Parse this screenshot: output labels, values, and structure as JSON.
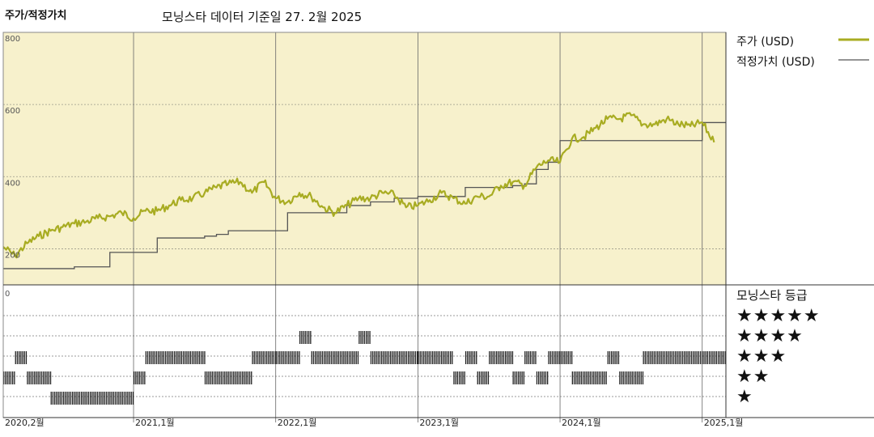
{
  "header": {
    "title": "주가/적정가치",
    "subtitle": "모닝스타 데이터 기준일 27. 2월 2025"
  },
  "legend": {
    "price_label": "주가 (USD)",
    "fair_value_label": "적정가치 (USD)",
    "rating_title": "모닝스타 등급",
    "star_rows": [
      "★★★★★",
      "★★★★",
      "★★★",
      "★★",
      "★"
    ]
  },
  "colors": {
    "panel_bg": "#f7f1cc",
    "price_line": "#a8ac22",
    "fair_value_line": "#555555",
    "rating_marks": "#222222"
  },
  "chart_data": [
    {
      "type": "line",
      "series": [
        {
          "name": "주가 (USD)",
          "x": [
            "2020-02",
            "2020-03",
            "2020-04",
            "2020-05",
            "2020-06",
            "2020-07",
            "2020-08",
            "2020-09",
            "2020-10",
            "2020-11",
            "2020-12",
            "2021-01",
            "2021-02",
            "2021-03",
            "2021-04",
            "2021-05",
            "2021-06",
            "2021-07",
            "2021-08",
            "2021-09",
            "2021-10",
            "2021-11",
            "2021-12",
            "2022-01",
            "2022-02",
            "2022-03",
            "2022-04",
            "2022-05",
            "2022-06",
            "2022-07",
            "2022-08",
            "2022-09",
            "2022-10",
            "2022-11",
            "2022-12",
            "2023-01",
            "2023-02",
            "2023-03",
            "2023-04",
            "2023-05",
            "2023-06",
            "2023-07",
            "2023-08",
            "2023-09",
            "2023-10",
            "2023-11",
            "2023-12",
            "2024-01",
            "2024-02",
            "2024-03",
            "2024-04",
            "2024-05",
            "2024-06",
            "2024-07",
            "2024-08",
            "2024-09",
            "2024-10",
            "2024-11",
            "2024-12",
            "2025-01",
            "2025-02"
          ],
          "values": [
            205,
            180,
            215,
            235,
            250,
            260,
            270,
            275,
            285,
            290,
            300,
            285,
            305,
            305,
            320,
            335,
            340,
            355,
            370,
            380,
            385,
            355,
            385,
            340,
            330,
            355,
            345,
            315,
            300,
            320,
            340,
            340,
            355,
            350,
            315,
            320,
            335,
            355,
            340,
            325,
            345,
            345,
            375,
            385,
            375,
            425,
            445,
            440,
            505,
            510,
            535,
            560,
            560,
            570,
            545,
            545,
            560,
            545,
            540,
            550,
            495
          ]
        },
        {
          "name": "적정가치 (USD)",
          "x": [
            "2020-02",
            "2020-07",
            "2020-08",
            "2020-10",
            "2020-11",
            "2021-03",
            "2021-07",
            "2021-08",
            "2021-09",
            "2021-12",
            "2022-02",
            "2022-03",
            "2022-05",
            "2022-07",
            "2022-09",
            "2022-10",
            "2022-11",
            "2023-01",
            "2023-02",
            "2023-05",
            "2023-07",
            "2023-09",
            "2023-10",
            "2023-11",
            "2023-12",
            "2024-01",
            "2024-03",
            "2024-08",
            "2024-09",
            "2025-01",
            "2025-02"
          ],
          "values": [
            145,
            145,
            150,
            150,
            190,
            230,
            235,
            240,
            250,
            250,
            300,
            300,
            300,
            320,
            330,
            330,
            340,
            345,
            345,
            370,
            370,
            375,
            380,
            420,
            440,
            500,
            500,
            500,
            500,
            550,
            550
          ]
        }
      ],
      "ylim": [
        100,
        800
      ],
      "yticks": [
        200,
        400,
        600,
        800
      ],
      "xlim": [
        "2020-02",
        "2025-03"
      ],
      "xticks": [
        "2020,2월",
        "2021,1월",
        "2022,1월",
        "2023,1월",
        "2024,1월",
        "2025,1월"
      ],
      "grid": true,
      "legend_position": "right"
    },
    {
      "type": "timeline",
      "categories": [
        "★★★★★",
        "★★★★",
        "★★★",
        "★★",
        "★"
      ],
      "ytick": "0",
      "ratings": [
        {
          "start": "2020-02",
          "end": "2020-03",
          "stars": 2
        },
        {
          "start": "2020-03",
          "end": "2020-04",
          "stars": 3
        },
        {
          "start": "2020-04",
          "end": "2020-06",
          "stars": 2
        },
        {
          "start": "2020-06",
          "end": "2021-01",
          "stars": 1
        },
        {
          "start": "2021-01",
          "end": "2021-02",
          "stars": 2
        },
        {
          "start": "2021-02",
          "end": "2021-07",
          "stars": 3
        },
        {
          "start": "2021-07",
          "end": "2021-11",
          "stars": 2
        },
        {
          "start": "2021-11",
          "end": "2022-01",
          "stars": 3
        },
        {
          "start": "2022-01",
          "end": "2022-03",
          "stars": 3
        },
        {
          "start": "2022-03",
          "end": "2022-04",
          "stars": 4
        },
        {
          "start": "2022-04",
          "end": "2022-08",
          "stars": 3
        },
        {
          "start": "2022-08",
          "end": "2022-09",
          "stars": 4
        },
        {
          "start": "2022-09",
          "end": "2023-01",
          "stars": 3
        },
        {
          "start": "2023-01",
          "end": "2023-04",
          "stars": 3
        },
        {
          "start": "2023-04",
          "end": "2023-05",
          "stars": 2
        },
        {
          "start": "2023-05",
          "end": "2023-06",
          "stars": 3
        },
        {
          "start": "2023-06",
          "end": "2023-07",
          "stars": 2
        },
        {
          "start": "2023-07",
          "end": "2023-09",
          "stars": 3
        },
        {
          "start": "2023-09",
          "end": "2023-10",
          "stars": 2
        },
        {
          "start": "2023-10",
          "end": "2023-11",
          "stars": 3
        },
        {
          "start": "2023-11",
          "end": "2023-12",
          "stars": 2
        },
        {
          "start": "2023-12",
          "end": "2024-02",
          "stars": 3
        },
        {
          "start": "2024-02",
          "end": "2024-05",
          "stars": 2
        },
        {
          "start": "2024-05",
          "end": "2024-06",
          "stars": 3
        },
        {
          "start": "2024-06",
          "end": "2024-08",
          "stars": 2
        },
        {
          "start": "2024-08",
          "end": "2025-03",
          "stars": 3
        }
      ]
    }
  ]
}
